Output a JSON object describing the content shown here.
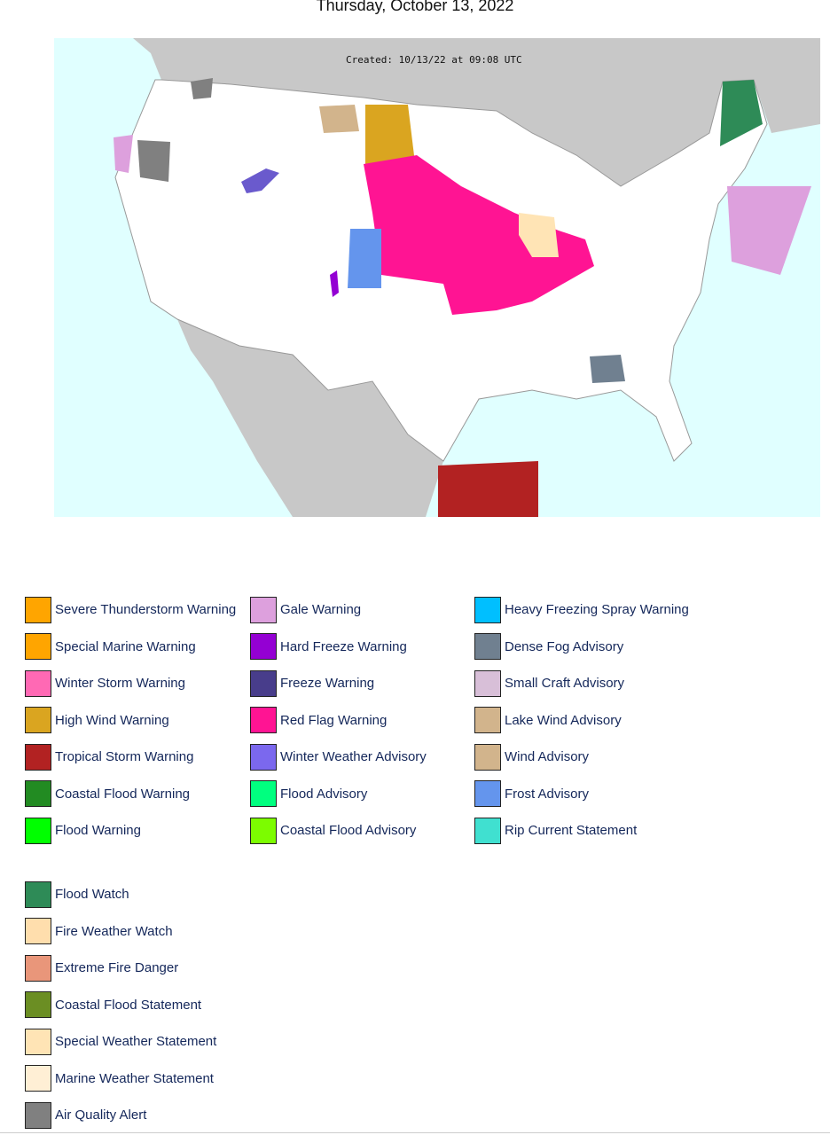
{
  "header": {
    "title": "Thursday, October 13, 2022"
  },
  "map": {
    "created": "Created: 10/13/22 at 09:08 UTC"
  },
  "legend": {
    "groups": [
      {
        "items": [
          {
            "label": "Severe Thunderstorm Warning",
            "color": "#ffa500"
          },
          {
            "label": "Special Marine Warning",
            "color": "#ffa500"
          },
          {
            "label": "Winter Storm Warning",
            "color": "#ff69b4"
          },
          {
            "label": "High Wind Warning",
            "color": "#daa520"
          },
          {
            "label": "Tropical Storm Warning",
            "color": "#b22222"
          },
          {
            "label": "Coastal Flood Warning",
            "color": "#228b22"
          },
          {
            "label": "Flood Warning",
            "color": "#00ff00"
          },
          {
            "label": "Gale Warning",
            "color": "#dda0dd"
          },
          {
            "label": "Hard Freeze Warning",
            "color": "#9400d3"
          },
          {
            "label": "Freeze Warning",
            "color": "#483d8b"
          },
          {
            "label": "Red Flag Warning",
            "color": "#ff1493"
          },
          {
            "label": "Winter Weather Advisory",
            "color": "#7b68ee"
          },
          {
            "label": "Flood Advisory",
            "color": "#00ff7f"
          },
          {
            "label": "Coastal Flood Advisory",
            "color": "#7cfc00"
          },
          {
            "label": "Heavy Freezing Spray Warning",
            "color": "#00bfff"
          },
          {
            "label": "Dense Fog Advisory",
            "color": "#708090"
          },
          {
            "label": "Small Craft Advisory",
            "color": "#d8bfd8"
          },
          {
            "label": "Lake Wind Advisory",
            "color": "#d2b48c"
          },
          {
            "label": "Wind Advisory",
            "color": "#d2b48c"
          },
          {
            "label": "Frost Advisory",
            "color": "#6495ed"
          },
          {
            "label": "Rip Current Statement",
            "color": "#40e0d0"
          }
        ]
      },
      {
        "items": [
          {
            "label": "Flood Watch",
            "color": "#2e8b57"
          },
          {
            "label": "Fire Weather Watch",
            "color": "#ffdead"
          },
          {
            "label": "Extreme Fire Danger",
            "color": "#e9967a"
          },
          {
            "label": "Coastal Flood Statement",
            "color": "#6b8e23"
          },
          {
            "label": "Special Weather Statement",
            "color": "#ffe4b5"
          },
          {
            "label": "Marine Weather Statement",
            "color": "#ffefd5"
          },
          {
            "label": "Air Quality Alert",
            "color": "#808080"
          }
        ]
      }
    ]
  }
}
